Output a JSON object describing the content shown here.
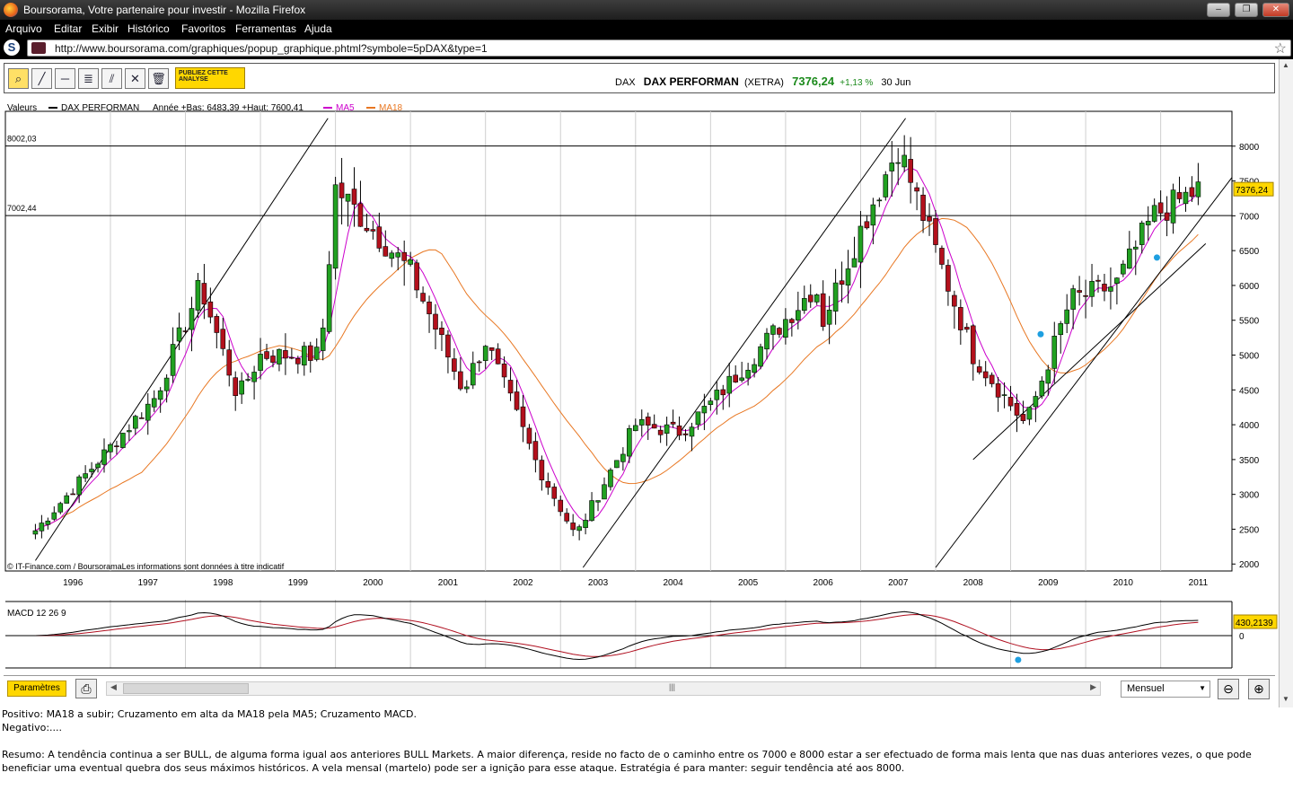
{
  "window": {
    "title": "Boursorama, Votre partenaire pour investir - Mozilla Firefox",
    "controls": {
      "minimize": "–",
      "maximize": "❐",
      "close": "✕"
    }
  },
  "menu": [
    "Arquivo",
    "Editar",
    "Exibir",
    "Histórico",
    "Favoritos",
    "Ferramentas",
    "Ajuda"
  ],
  "nav": {
    "site_icon": "S",
    "url": "http://www.boursorama.com/graphiques/popup_graphique.phtml?symbole=5pDAX&type=1",
    "bookmark_icon": "star-icon"
  },
  "toolbar": {
    "tools": [
      "zoom-icon",
      "trendline-icon",
      "horizontal-line-icon",
      "fibonacci-icon",
      "parallel-line-icon",
      "cross-line-icon",
      "trash-icon"
    ],
    "publiez_label": "PUBLIEZ CETTE ANALYSE"
  },
  "quote": {
    "market": "DAX",
    "name": "DAX PERFORMAN",
    "exchange": "(XETRA)",
    "price": "7376,24",
    "change": "+1,13 %",
    "date": "30 Jun"
  },
  "legend": {
    "valeurs": "Valeurs",
    "series": "DAX PERFORMAN",
    "range_info": "Année +Bas: 6483,39 +Haut: 7600,41",
    "ma5": "MA5",
    "ma18": "MA18",
    "credits": "© IT-Finance.com / BoursoramaLes informations sont données à titre indicatif"
  },
  "chart_data": {
    "type": "candlestick",
    "period": "monthly",
    "x_labels": [
      "1996",
      "1997",
      "1998",
      "1999",
      "2000",
      "2001",
      "2002",
      "2003",
      "2004",
      "2005",
      "2006",
      "2007",
      "2008",
      "2009",
      "2010",
      "2011"
    ],
    "y_ticks": [
      "2000",
      "2500",
      "3000",
      "3500",
      "4000",
      "4500",
      "5000",
      "5500",
      "6000",
      "6500",
      "7000",
      "7500",
      "8000"
    ],
    "ylim": [
      1900,
      8500
    ],
    "horizontal_levels": [
      {
        "label": "8002,03",
        "value": 8002.03
      },
      {
        "label": "7002,44",
        "value": 7002.44
      }
    ],
    "last_value_label": "7376,24",
    "series": [
      {
        "name": "DAX PERFORMAN",
        "color": "#000000",
        "keypoints": [
          [
            1996.0,
            2480
          ],
          [
            1997.6,
            4400
          ],
          [
            1998.2,
            6000
          ],
          [
            1998.7,
            4400
          ],
          [
            1999.0,
            5000
          ],
          [
            1999.8,
            5000
          ],
          [
            2000.0,
            7400
          ],
          [
            2001.0,
            6200
          ],
          [
            2001.7,
            4500
          ],
          [
            2002.0,
            5200
          ],
          [
            2002.7,
            3400
          ],
          [
            2003.2,
            2400
          ],
          [
            2004.0,
            4000
          ],
          [
            2004.6,
            3900
          ],
          [
            2005.0,
            4300
          ],
          [
            2006.4,
            6000
          ],
          [
            2006.5,
            5500
          ],
          [
            2007.0,
            6800
          ],
          [
            2007.5,
            8000
          ],
          [
            2008.0,
            6500
          ],
          [
            2008.5,
            5000
          ],
          [
            2009.2,
            4000
          ],
          [
            2009.8,
            5800
          ],
          [
            2010.4,
            6000
          ],
          [
            2010.9,
            7000
          ],
          [
            2011.5,
            7376
          ]
        ]
      },
      {
        "name": "MA5",
        "color": "#cc00cc"
      },
      {
        "name": "MA18",
        "color": "#e87722"
      }
    ],
    "macd": {
      "label": "MACD 12 26 9",
      "value_label": "430,2139",
      "zero_label": "0"
    },
    "markers": [
      "blue-dot",
      "blue-dot",
      "blue-dot"
    ]
  },
  "bottombar": {
    "params_label": "Paramètres",
    "period_value": "Mensuel",
    "zoom_out": "zoom-out-icon",
    "zoom_in": "zoom-in-icon"
  },
  "commentary": {
    "positivo": "Positivo: MA18 a subir; Cruzamento em alta da MA18 pela MA5; Cruzamento MACD.",
    "negativo": "Negativo:....",
    "resumo": "Resumo: A tendência continua a ser BULL, de alguma forma igual aos anteriores BULL Markets. A maior diferença, reside no facto de o caminho entre os 7000 e 8000 estar a ser efectuado de forma mais lenta que nas duas anteriores vezes, o que pode beneficiar uma eventual quebra dos seus máximos históricos. A vela mensal (martelo) pode ser a ignição para esse ataque. Estratégia é para manter: seguir tendência até aos 8000."
  }
}
